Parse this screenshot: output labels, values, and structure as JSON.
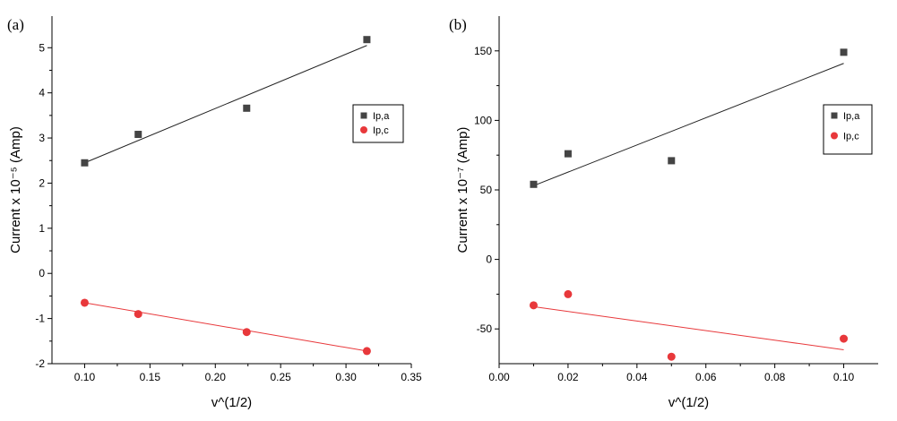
{
  "chart_data": [
    {
      "type": "scatter",
      "panel_label": "(a)",
      "xlabel": "v^(1/2)",
      "ylabel": "Current x 10⁻⁵ (Amp)",
      "xlim": [
        0.075,
        0.35
      ],
      "ylim": [
        -2,
        5.7
      ],
      "x_ticks": [
        "0.10",
        "0.15",
        "0.20",
        "0.25",
        "0.30",
        "0.35"
      ],
      "x_tick_values": [
        0.1,
        0.15,
        0.2,
        0.25,
        0.3,
        0.35
      ],
      "y_ticks": [
        "-2",
        "-1",
        "0",
        "1",
        "2",
        "3",
        "4",
        "5"
      ],
      "y_tick_values": [
        -2,
        -1,
        0,
        1,
        2,
        3,
        4,
        5
      ],
      "legend_position": "right",
      "series": [
        {
          "name": "Ip,a",
          "marker": "square",
          "color": "#444444",
          "fit_color": "#222222",
          "x": [
            0.1,
            0.141,
            0.224,
            0.316
          ],
          "y": [
            2.45,
            3.08,
            3.66,
            5.18
          ],
          "fit": [
            [
              0.1,
              2.45
            ],
            [
              0.316,
              5.05
            ]
          ]
        },
        {
          "name": "Ip,c",
          "marker": "circle",
          "color": "#e8383b",
          "fit_color": "#e8383b",
          "x": [
            0.1,
            0.141,
            0.224,
            0.316
          ],
          "y": [
            -0.65,
            -0.9,
            -1.3,
            -1.72
          ],
          "fit": [
            [
              0.1,
              -0.65
            ],
            [
              0.316,
              -1.72
            ]
          ]
        }
      ]
    },
    {
      "type": "scatter",
      "panel_label": "(b)",
      "xlabel": "v^(1/2)",
      "ylabel": "Current x 10⁻⁷ (Amp)",
      "xlim": [
        0.0,
        0.11
      ],
      "ylim": [
        -75,
        175
      ],
      "x_ticks": [
        "0.00",
        "0.02",
        "0.04",
        "0.06",
        "0.08",
        "0.10"
      ],
      "x_tick_values": [
        0.0,
        0.02,
        0.04,
        0.06,
        0.08,
        0.1
      ],
      "y_ticks": [
        "-50",
        "0",
        "50",
        "100",
        "150"
      ],
      "y_tick_values": [
        -50,
        0,
        50,
        100,
        150
      ],
      "legend_position": "right",
      "series": [
        {
          "name": "Ip,a",
          "marker": "square",
          "color": "#444444",
          "fit_color": "#222222",
          "x": [
            0.01,
            0.02,
            0.05,
            0.1
          ],
          "y": [
            54,
            76,
            71,
            149
          ],
          "fit": [
            [
              0.01,
              53
            ],
            [
              0.1,
              141
            ]
          ]
        },
        {
          "name": "Ip,c",
          "marker": "circle",
          "color": "#e8383b",
          "fit_color": "#e8383b",
          "x": [
            0.01,
            0.02,
            0.05,
            0.1
          ],
          "y": [
            -33,
            -25,
            -70,
            -57
          ],
          "fit": [
            [
              0.01,
              -34
            ],
            [
              0.1,
              -65
            ]
          ]
        }
      ]
    }
  ]
}
